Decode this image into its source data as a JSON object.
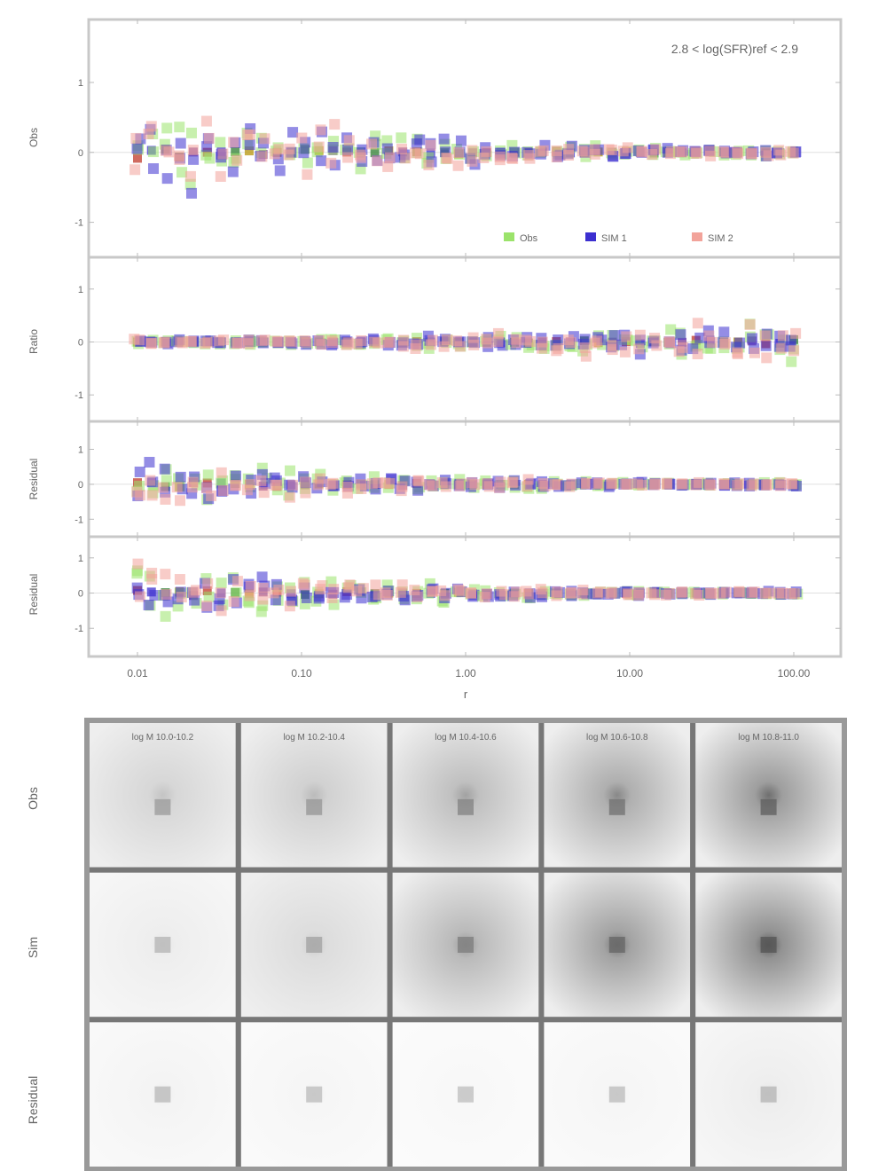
{
  "figure": {
    "annotation": "2.8 < log(SFR)ref < 2.9",
    "x_tick_labels": [
      "0.01",
      "0.10",
      "1.00",
      "10.00",
      "100.00"
    ],
    "x_axis_label": "r",
    "legend": [
      {
        "label": "Obs",
        "color": "#9be36b"
      },
      {
        "label": "SIM 1",
        "color": "#3c2fd0"
      },
      {
        "label": "SIM 2",
        "color": "#f2a39a"
      }
    ],
    "panel_ylabels": [
      "Obs",
      "Ratio",
      "Residual",
      "Residual"
    ],
    "panels": [
      {
        "id": "p1",
        "ticks": [
          {
            "v": 1,
            "label": "1"
          },
          {
            "v": 0,
            "label": "0"
          },
          {
            "v": -1,
            "label": "-1"
          }
        ],
        "ylim": [
          -1.5,
          1.9
        ]
      },
      {
        "id": "p2",
        "ticks": [
          {
            "v": 1,
            "label": "1"
          },
          {
            "v": 0,
            "label": "0"
          },
          {
            "v": -1,
            "label": "-1"
          }
        ],
        "ylim": [
          -1.5,
          1.6
        ]
      },
      {
        "id": "p3",
        "ticks": [
          {
            "v": 1,
            "label": "1"
          },
          {
            "v": 0,
            "label": "0"
          },
          {
            "v": -1,
            "label": "-1"
          }
        ],
        "ylim": [
          -1.5,
          1.8
        ]
      },
      {
        "id": "p4",
        "ticks": [
          {
            "v": 1,
            "label": "1"
          },
          {
            "v": 0,
            "label": "0"
          },
          {
            "v": -1,
            "label": "-1"
          }
        ],
        "ylim": [
          -1.8,
          1.6
        ]
      }
    ],
    "grid_row_labels": [
      "Obs",
      "Sim",
      "Residual"
    ],
    "grid_col_labels": [
      "log M 10.0-10.2",
      "log M 10.2-10.4",
      "log M 10.4-10.6",
      "log M 10.6-10.8",
      "log M 10.8-11.0"
    ]
  },
  "chart_data": {
    "type": "scatter",
    "xlim": [
      0.01,
      100
    ],
    "xscale": "log",
    "legend_placement": "bottom-right of top panel",
    "series_colors": {
      "Obs": "#9be36b",
      "SIM 1": "#3c2fd0",
      "SIM 2": "#f2a39a"
    },
    "center_colors": [
      "#c0392b",
      "#3c2fd0",
      "#2e7d32",
      "#b7950b",
      "#7d3c98"
    ],
    "x_start": 0.01,
    "x_end": 100,
    "n_points": 48,
    "panels": [
      {
        "noise_spread": {
          "left": 0.9,
          "right": 0.05
        },
        "mean": 0,
        "outlier_side": "left"
      },
      {
        "noise_spread": {
          "left": 0.05,
          "right": 0.6
        },
        "mean": 0,
        "outlier_side": "right"
      },
      {
        "noise_spread": {
          "left": 0.8,
          "right": 0.05
        },
        "mean": 0,
        "outlier_side": "left"
      },
      {
        "noise_spread": {
          "left": 1.0,
          "right": 0.05
        },
        "mean": 0,
        "outlier_side": "left"
      }
    ],
    "image_grid": {
      "rows": 3,
      "cols": 5,
      "intensity": [
        [
          0.35,
          0.4,
          0.55,
          0.7,
          0.85
        ],
        [
          0.15,
          0.3,
          0.6,
          0.8,
          0.95
        ],
        [
          0.1,
          0.08,
          0.06,
          0.08,
          0.15
        ]
      ]
    }
  }
}
